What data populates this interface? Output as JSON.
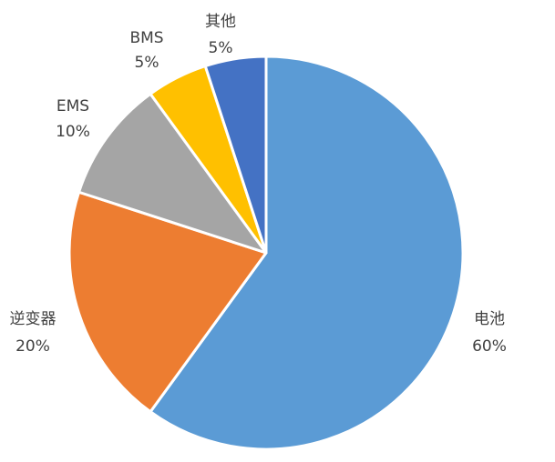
{
  "chart_data": {
    "type": "pie",
    "title": "",
    "slices": [
      {
        "label": "电池",
        "value": 60,
        "value_label": "60%",
        "color": "#5B9BD5"
      },
      {
        "label": "逆变器",
        "value": 20,
        "value_label": "20%",
        "color": "#ED7D31"
      },
      {
        "label": "EMS",
        "value": 10,
        "value_label": "10%",
        "color": "#A5A5A5"
      },
      {
        "label": "BMS",
        "value": 5,
        "value_label": "5%",
        "color": "#FFC000"
      },
      {
        "label": "其他",
        "value": 5,
        "value_label": "5%",
        "color": "#4472C4"
      }
    ],
    "start": "12 o'clock",
    "direction": "clockwise",
    "legend": "none",
    "data_labels": "outside"
  }
}
